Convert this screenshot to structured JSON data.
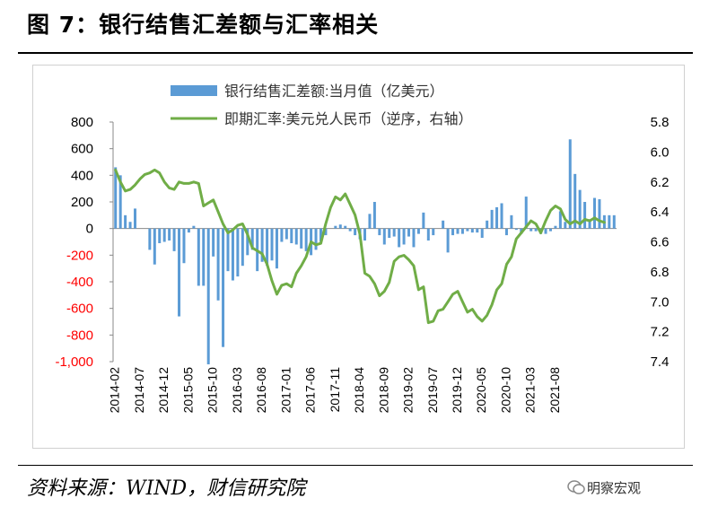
{
  "header": {
    "title": "图 7：银行结售汇差额与汇率相关"
  },
  "footer": {
    "source": "资料来源：WIND，财信研究院",
    "watermark": "明察宏观"
  },
  "colors": {
    "bar": "#5b9bd5",
    "line": "#70ad47",
    "neg_tick": "#ff0000"
  },
  "chart_data": {
    "type": "bar+line",
    "legend": [
      "银行结售汇差额:当月值（亿美元）",
      "即期汇率:美元兑人民币（逆序，右轴）"
    ],
    "x_tick_labels": [
      "2014-02",
      "2014-07",
      "2014-12",
      "2015-05",
      "2015-10",
      "2016-03",
      "2016-08",
      "2017-01",
      "2017-06",
      "2017-11",
      "2018-04",
      "2018-09",
      "2019-02",
      "2019-07",
      "2019-12",
      "2020-05",
      "2020-10",
      "2021-03",
      "2021-08"
    ],
    "left_axis": {
      "min": -1000,
      "max": 800,
      "step": 200,
      "labels": [
        "800",
        "600",
        "400",
        "200",
        "0",
        "-200",
        "-400",
        "-600",
        "-800",
        "-1,000"
      ]
    },
    "right_axis": {
      "min": 5.8,
      "max": 7.4,
      "step": 0.2,
      "reversed": true,
      "labels": [
        "5.8",
        "6.0",
        "6.2",
        "6.4",
        "6.6",
        "6.8",
        "7.0",
        "7.2",
        "7.4"
      ]
    },
    "start": "2014-02",
    "bars": [
      460,
      400,
      100,
      50,
      150,
      0,
      0,
      -160,
      -270,
      -110,
      -100,
      -90,
      -170,
      -660,
      -260,
      -30,
      20,
      -430,
      -430,
      -1020,
      -210,
      -540,
      -890,
      -320,
      -390,
      -360,
      -280,
      -200,
      -160,
      -320,
      -250,
      -280,
      -240,
      -300,
      -100,
      -80,
      -110,
      -120,
      -150,
      -170,
      -200,
      -160,
      -100,
      -50,
      0,
      20,
      30,
      20,
      -20,
      -50,
      -80,
      -90,
      110,
      200,
      -50,
      -120,
      -70,
      -60,
      -140,
      -120,
      -60,
      -140,
      -40,
      120,
      -90,
      -50,
      0,
      60,
      -180,
      -50,
      -40,
      -40,
      -20,
      -30,
      -30,
      -70,
      60,
      140,
      160,
      190,
      -50,
      100,
      -10,
      -40,
      240,
      -20,
      -20,
      -40,
      -40,
      -20,
      20,
      130,
      50,
      670,
      410,
      290,
      200,
      70,
      230,
      220,
      100,
      100,
      100
    ],
    "rate": [
      6.12,
      6.2,
      6.26,
      6.25,
      6.22,
      6.18,
      6.15,
      6.14,
      6.12,
      6.14,
      6.2,
      6.24,
      6.25,
      6.2,
      6.21,
      6.21,
      6.2,
      6.21,
      6.36,
      6.34,
      6.32,
      6.4,
      6.48,
      6.54,
      6.52,
      6.49,
      6.48,
      6.55,
      6.64,
      6.66,
      6.68,
      6.75,
      6.86,
      6.95,
      6.89,
      6.88,
      6.9,
      6.81,
      6.76,
      6.7,
      6.6,
      6.62,
      6.61,
      6.48,
      6.37,
      6.3,
      6.32,
      6.28,
      6.35,
      6.42,
      6.55,
      6.81,
      6.83,
      6.88,
      6.96,
      6.93,
      6.87,
      6.73,
      6.7,
      6.69,
      6.72,
      6.76,
      6.92,
      6.9,
      7.14,
      7.13,
      7.06,
      7.05,
      7.0,
      6.95,
      6.93,
      7.0,
      7.07,
      7.05,
      7.1,
      7.13,
      7.09,
      7.02,
      6.92,
      6.88,
      6.75,
      6.7,
      6.58,
      6.54,
      6.5,
      6.46,
      6.48,
      6.54,
      6.46,
      6.39,
      6.36,
      6.38,
      6.45,
      6.48,
      6.46,
      6.48,
      6.45,
      6.46,
      6.44,
      6.46,
      6.47
    ]
  }
}
